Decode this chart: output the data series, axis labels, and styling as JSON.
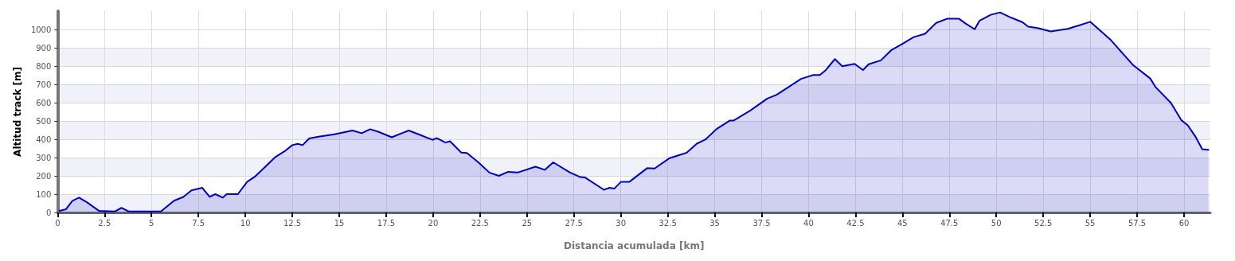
{
  "chart_data": {
    "type": "area",
    "xlabel": "Distancia acumulada [km]",
    "ylabel": "Altitud track [m]",
    "x": [
      0.1,
      0.44,
      0.79,
      1.14,
      1.56,
      2.2,
      3.04,
      3.4,
      3.8,
      5.5,
      6.2,
      6.7,
      7.13,
      7.7,
      8.1,
      8.4,
      8.8,
      9.0,
      9.6,
      10.1,
      10.5,
      10.8,
      11.6,
      12.1,
      12.5,
      12.8,
      13.05,
      13.4,
      13.9,
      14.7,
      15.7,
      16.2,
      16.65,
      17.1,
      17.8,
      18.7,
      19.25,
      19.96,
      20.2,
      20.66,
      20.9,
      21.5,
      21.8,
      22.4,
      23.0,
      23.5,
      24.0,
      24.5,
      25.45,
      25.95,
      26.4,
      27.3,
      27.85,
      28.1,
      29.1,
      29.4,
      29.65,
      30.0,
      30.45,
      31.4,
      31.8,
      32.6,
      33.5,
      34.05,
      34.5,
      35.1,
      35.8,
      36.0,
      36.9,
      37.8,
      38.3,
      39.6,
      40.25,
      40.6,
      40.9,
      41.4,
      41.8,
      42.45,
      42.9,
      43.2,
      43.85,
      44.4,
      45.0,
      45.6,
      46.2,
      46.8,
      47.4,
      48.0,
      48.4,
      48.85,
      49.1,
      49.7,
      50.2,
      50.8,
      51.4,
      51.7,
      52.2,
      52.9,
      53.8,
      54.4,
      55.0,
      56.1,
      57.3,
      58.2,
      58.5,
      59.3,
      59.85,
      60.2,
      60.6,
      60.97,
      61.3
    ],
    "series": [
      {
        "color": "#0000cc",
        "values": [
          9,
          17,
          64,
          81,
          56,
          9,
          5,
          25,
          5,
          5,
          64,
          85,
          121,
          135,
          85,
          100,
          81,
          100,
          100,
          168,
          195,
          224,
          303,
          335,
          368,
          375,
          368,
          404,
          414,
          426,
          448,
          433,
          455,
          440,
          411,
          448,
          426,
          397,
          406,
          382,
          389,
          327,
          325,
          275,
          218,
          200,
          222,
          218,
          250,
          233,
          274,
          218,
          193,
          191,
          124,
          135,
          130,
          167,
          167,
          242,
          240,
          297,
          326,
          376,
          398,
          456,
          502,
          502,
          557,
          622,
          643,
          730,
          751,
          751,
          776,
          838,
          799,
          812,
          778,
          810,
          831,
          886,
          921,
          958,
          976,
          1036,
          1059,
          1059,
          1030,
          1001,
          1047,
          1080,
          1093,
          1064,
          1039,
          1015,
          1008,
          989,
          1003,
          1022,
          1042,
          942,
          804,
          732,
          683,
          599,
          505,
          476,
          416,
          346,
          342
        ]
      }
    ],
    "xlim": [
      0,
      61.4
    ],
    "xticks": [
      0,
      2.5,
      5,
      7.5,
      10,
      12.5,
      15,
      17.5,
      20,
      22.5,
      25,
      27.5,
      30,
      32.5,
      35,
      37.5,
      40,
      42.5,
      45,
      47.5,
      50,
      52.5,
      55,
      57.5,
      60
    ],
    "ylim": [
      0,
      1100
    ],
    "yticks": [
      0,
      100,
      200,
      300,
      400,
      500,
      600,
      700,
      800,
      900,
      1000
    ],
    "grid": true,
    "marker": "none",
    "line_style": "solid"
  }
}
